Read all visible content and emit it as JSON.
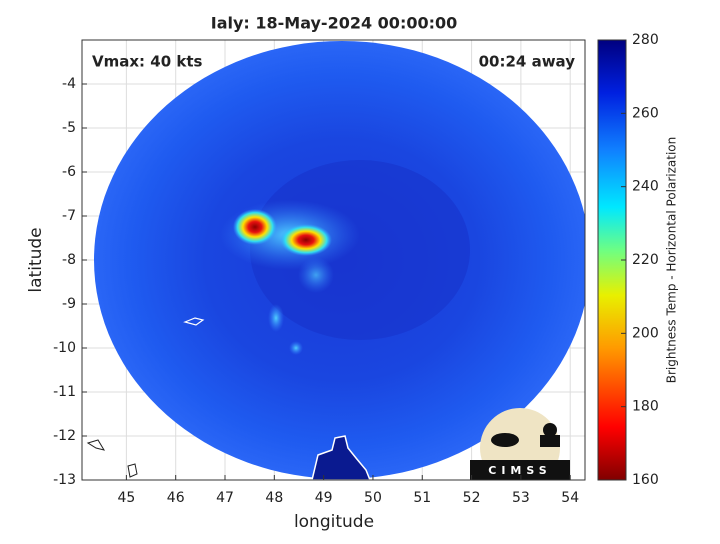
{
  "chart_data": {
    "type": "map",
    "title": "Ialy: 18-May-2024 00:00:00",
    "annotations": [
      "Vmax: 40 kts",
      "00:24 away"
    ],
    "x_label": "longitude",
    "y_label": "latitude",
    "xlim": [
      44.1,
      54.3
    ],
    "ylim": [
      -13,
      -3
    ],
    "xticks": [
      45,
      46,
      47,
      48,
      49,
      50,
      51,
      52,
      53,
      54
    ],
    "yticks": [
      -4,
      -5,
      -6,
      -7,
      -8,
      -9,
      -10,
      -11,
      -12,
      -13
    ],
    "grid": true,
    "colorbar": {
      "label": "Brightness Temp - Horizontal Polarization",
      "lim": [
        160,
        280
      ],
      "ticks": [
        160,
        180,
        200,
        220,
        240,
        260,
        280
      ]
    },
    "logo_text": "CIMSS"
  }
}
